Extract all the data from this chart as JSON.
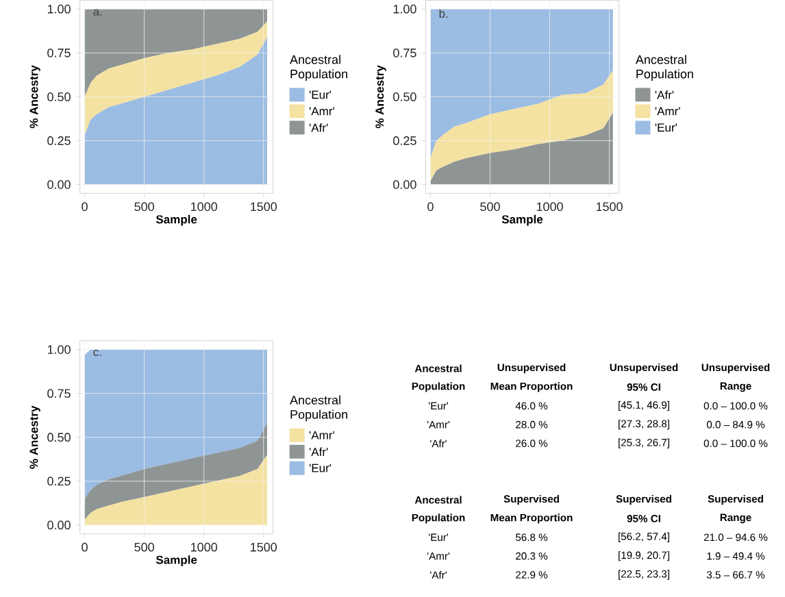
{
  "chart_data": [
    {
      "type": "area",
      "stacked": true,
      "grid": true,
      "legend": "right",
      "legend_title": "Ancestral Population",
      "xlabel": "Sample",
      "ylabel": "% Ancestry",
      "annotations": [
        "a."
      ],
      "x": [
        0,
        50,
        100,
        200,
        300,
        500,
        700,
        900,
        1100,
        1300,
        1450,
        1530
      ],
      "xlim": [
        -40,
        1580
      ],
      "xticks": [
        0,
        500,
        1000,
        1500
      ],
      "ylim": [
        -0.05,
        1.05
      ],
      "yticks": [
        {
          "value": 0,
          "label": "0.00"
        },
        {
          "value": 0.25,
          "label": "0.25"
        },
        {
          "value": 0.5,
          "label": "0.50"
        },
        {
          "value": 0.75,
          "label": "0.75"
        },
        {
          "value": 1,
          "label": "1.00"
        }
      ],
      "series": [
        {
          "name": "'Eur'",
          "color": "#9bbce3",
          "values": [
            0.28,
            0.37,
            0.4,
            0.44,
            0.46,
            0.5,
            0.54,
            0.58,
            0.62,
            0.67,
            0.74,
            0.84
          ]
        },
        {
          "name": "'Amr'",
          "color": "#f4e2a2",
          "values": [
            0.22,
            0.21,
            0.22,
            0.22,
            0.22,
            0.22,
            0.21,
            0.19,
            0.18,
            0.16,
            0.13,
            0.09
          ]
        },
        {
          "name": "'Afr'",
          "color": "#8f9595",
          "values": [
            0.5,
            0.42,
            0.38,
            0.34,
            0.32,
            0.28,
            0.25,
            0.23,
            0.2,
            0.17,
            0.13,
            0.07
          ]
        }
      ]
    },
    {
      "type": "area",
      "stacked": true,
      "grid": true,
      "legend": "right",
      "legend_title": "Ancestral Population",
      "xlabel": "Sample",
      "ylabel": "% Ancestry",
      "annotations": [
        "b."
      ],
      "x": [
        0,
        50,
        100,
        200,
        300,
        500,
        700,
        900,
        1100,
        1300,
        1450,
        1530
      ],
      "xlim": [
        -40,
        1580
      ],
      "xticks": [
        0,
        500,
        1000,
        1500
      ],
      "ylim": [
        -0.05,
        1.05
      ],
      "yticks": [
        {
          "value": 0,
          "label": "0.00"
        },
        {
          "value": 0.25,
          "label": "0.25"
        },
        {
          "value": 0.5,
          "label": "0.50"
        },
        {
          "value": 0.75,
          "label": "0.75"
        },
        {
          "value": 1,
          "label": "1.00"
        }
      ],
      "series": [
        {
          "name": "'Afr'",
          "color": "#8f9595",
          "values": [
            0.02,
            0.08,
            0.1,
            0.13,
            0.15,
            0.18,
            0.2,
            0.23,
            0.25,
            0.28,
            0.32,
            0.41
          ]
        },
        {
          "name": "'Amr'",
          "color": "#f4e2a2",
          "values": [
            0.13,
            0.17,
            0.18,
            0.2,
            0.2,
            0.22,
            0.23,
            0.23,
            0.26,
            0.24,
            0.25,
            0.24
          ]
        },
        {
          "name": "'Eur'",
          "color": "#9bbce3",
          "values": [
            0.85,
            0.75,
            0.72,
            0.67,
            0.65,
            0.6,
            0.57,
            0.54,
            0.49,
            0.48,
            0.43,
            0.35
          ]
        }
      ]
    },
    {
      "type": "area",
      "stacked": true,
      "grid": true,
      "legend": "right",
      "legend_title": "Ancestral Population",
      "xlabel": "Sample",
      "ylabel": "% Ancestry",
      "annotations": [
        "c."
      ],
      "x": [
        0,
        50,
        100,
        200,
        300,
        500,
        700,
        900,
        1100,
        1300,
        1450,
        1530
      ],
      "xlim": [
        -40,
        1580
      ],
      "xticks": [
        0,
        500,
        1000,
        1500
      ],
      "ylim": [
        -0.05,
        1.05
      ],
      "yticks": [
        {
          "value": 0,
          "label": "0.00"
        },
        {
          "value": 0.25,
          "label": "0.25"
        },
        {
          "value": 0.5,
          "label": "0.50"
        },
        {
          "value": 0.75,
          "label": "0.75"
        },
        {
          "value": 1,
          "label": "1.00"
        }
      ],
      "series": [
        {
          "name": "'Amr'",
          "color": "#f4e2a2",
          "values": [
            0.03,
            0.07,
            0.09,
            0.11,
            0.13,
            0.16,
            0.19,
            0.22,
            0.25,
            0.28,
            0.32,
            0.4
          ]
        },
        {
          "name": "'Afr'",
          "color": "#8f9595",
          "values": [
            0.12,
            0.13,
            0.14,
            0.15,
            0.15,
            0.16,
            0.16,
            0.16,
            0.16,
            0.16,
            0.16,
            0.18
          ]
        },
        {
          "name": "'Eur'",
          "color": "#9bbce3",
          "values": [
            0.82,
            0.8,
            0.77,
            0.74,
            0.72,
            0.68,
            0.65,
            0.62,
            0.59,
            0.56,
            0.52,
            0.42
          ]
        }
      ]
    },
    {
      "type": "other",
      "annotations": [
        "Ancestral",
        "Unsupervised",
        "Unsupervised",
        "Unsupervised",
        "Population",
        "Mean Proportion",
        "95% CI",
        "Range",
        "'Eur'",
        "46.0 %",
        "[45.1, 46.9]",
        "0.0 – 100.0 %",
        "'Amr'",
        "28.0 %",
        "[27.3, 28.8]",
        "0.0 – 84.9 %",
        "'Afr'",
        "26.0 %",
        "[25.3, 26.7]",
        "0.0 – 100.0 %",
        "Ancestral",
        "Supervised",
        "Supervised",
        "Supervised",
        "Population",
        "Mean Proportion",
        "95% CI",
        "Range",
        "'Eur'",
        "56.8 %",
        "[56.2, 57.4]",
        "21.0 – 94.6 %",
        "'Amr'",
        "20.3 %",
        "[19.9, 20.7]",
        "1.9 – 49.4 %",
        "'Afr'",
        "22.9 %",
        "[22.5, 23.3]",
        "3.5 – 66.7 %"
      ]
    }
  ]
}
